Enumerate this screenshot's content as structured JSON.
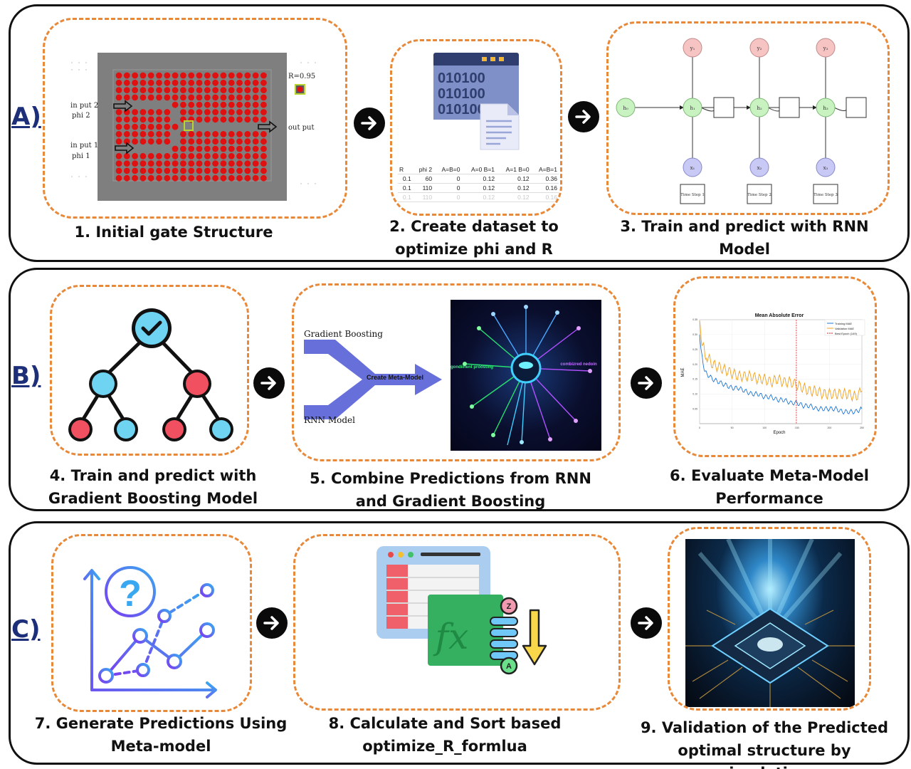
{
  "rows": [
    {
      "label": "A)"
    },
    {
      "label": "B)"
    },
    {
      "label": "C)"
    }
  ],
  "steps": {
    "s1": {
      "caption": "1. Initial gate Structure"
    },
    "s2": {
      "caption_line1": "2. Create dataset to",
      "caption_line2": "optimize phi and R"
    },
    "s3": {
      "caption_line1": "3. Train and predict with RNN",
      "caption_line2": "Model"
    },
    "s4": {
      "caption_line1": "4. Train and predict with",
      "caption_line2": "Gradient Boosting Model"
    },
    "s5": {
      "caption_line1": "5. Combine Predictions from RNN",
      "caption_line2": "and Gradient Boosting"
    },
    "s6": {
      "caption_line1": "6. Evaluate Meta-Model",
      "caption_line2": "Performance"
    },
    "s7": {
      "caption_line1": "7. Generate Predictions Using",
      "caption_line2": "Meta-model"
    },
    "s8": {
      "caption_line1": "8. Calculate and Sort based",
      "caption_line2": "optimize_R_formlua"
    },
    "s9": {
      "caption_line1": "9. Validation of the Predicted",
      "caption_line2": "optimal structure by simulation"
    }
  },
  "gate": {
    "input2": "in put 2",
    "phi2": "phi 2",
    "input1": "in put 1",
    "phi1": "phi 1",
    "output": "out put",
    "r_value": "R=0.95",
    "colors": {
      "rod": "#e01010",
      "background": "#7f7f7f",
      "highlight": "#b8d430"
    }
  },
  "dataset": {
    "headers": [
      "R",
      "phi 2",
      "A=B=0",
      "A=0 B=1",
      "A=1 B=0",
      "A=B=1"
    ],
    "rows": [
      [
        "0.1",
        "60",
        "0",
        "0.12",
        "0.12",
        "0.36"
      ],
      [
        "0.1",
        "110",
        "0",
        "0.12",
        "0.12",
        "0.16"
      ],
      [
        "0.1",
        "110",
        "0",
        "0.12",
        "0.12",
        "0.16"
      ]
    ]
  },
  "rnn": {
    "outputs": [
      "y₁",
      "y₂",
      "y₃"
    ],
    "hidden": [
      "h₀",
      "h₁",
      "h₂",
      "h₃"
    ],
    "inputs": [
      "x₁",
      "x₂",
      "x₃"
    ],
    "time_steps": [
      "Time Step 1",
      "Time Step 2",
      "Time Step 3"
    ]
  },
  "combine": {
    "top": "Gradient Boosting",
    "middle": "Create Meta-Model",
    "bottom": "RNN Model",
    "image_left": "gondiinent proosting",
    "image_right": "combizred nedoin"
  },
  "mae_chart": {
    "title": "Mean Absolute Error",
    "xlabel": "Epoch",
    "ylabel": "MAE",
    "legend": [
      "Training MAE",
      "Validation MAE",
      "Best Epoch (149)"
    ]
  },
  "chart_data": {
    "type": "line",
    "title": "Mean Absolute Error",
    "xlabel": "Epoch",
    "ylabel": "MAE",
    "xlim": [
      0,
      250
    ],
    "ylim": [
      0,
      0.35
    ],
    "xticks": [
      "0",
      "50",
      "100",
      "150",
      "200",
      "250"
    ],
    "yticks": [
      "0.05",
      "0.10",
      "0.15",
      "0.20",
      "0.25",
      "0.30",
      "0.35"
    ],
    "legend_position": "top-right",
    "best_epoch": 149,
    "series": [
      {
        "name": "Training MAE",
        "color": "#1f77d4",
        "x": [
          0,
          5,
          10,
          20,
          30,
          40,
          50,
          60,
          70,
          80,
          90,
          100,
          110,
          120,
          130,
          140,
          150,
          160,
          170,
          180,
          190,
          200,
          210,
          220,
          230,
          240,
          250
        ],
        "y": [
          0.3,
          0.2,
          0.17,
          0.15,
          0.14,
          0.13,
          0.12,
          0.12,
          0.11,
          0.1,
          0.1,
          0.09,
          0.09,
          0.08,
          0.08,
          0.07,
          0.07,
          0.06,
          0.06,
          0.05,
          0.05,
          0.05,
          0.05,
          0.04,
          0.04,
          0.04,
          0.05
        ]
      },
      {
        "name": "Validation MAE",
        "color": "#f0a020",
        "x": [
          0,
          5,
          10,
          20,
          30,
          40,
          50,
          60,
          70,
          80,
          90,
          100,
          110,
          120,
          130,
          140,
          150,
          160,
          170,
          180,
          190,
          200,
          210,
          220,
          230,
          240,
          250
        ],
        "y": [
          0.33,
          0.26,
          0.23,
          0.2,
          0.19,
          0.18,
          0.17,
          0.16,
          0.16,
          0.16,
          0.15,
          0.15,
          0.14,
          0.15,
          0.14,
          0.14,
          0.13,
          0.12,
          0.11,
          0.11,
          0.1,
          0.1,
          0.1,
          0.1,
          0.1,
          0.09,
          0.11
        ]
      }
    ]
  },
  "colors": {
    "accent_orange": "#e8893a",
    "label_blue": "#1e2f7a",
    "arrow_purple": "#5a63d8"
  }
}
